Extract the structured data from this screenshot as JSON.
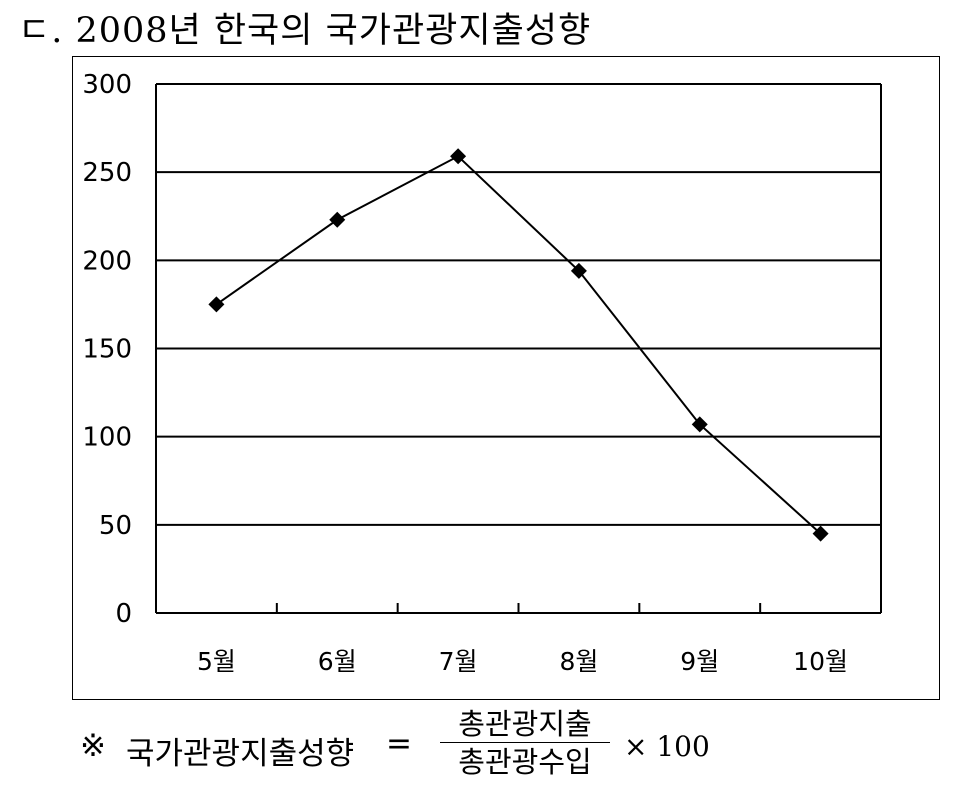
{
  "title": "ㄷ. 2008년 한국의 국가관광지출성향",
  "chart_data": {
    "type": "line",
    "title": "",
    "xlabel": "",
    "ylabel": "",
    "categories": [
      "5월",
      "6월",
      "7월",
      "8월",
      "9월",
      "10월"
    ],
    "series": [
      {
        "values": [
          175,
          223,
          259,
          194,
          107,
          45
        ]
      }
    ],
    "ylim": [
      0,
      300
    ],
    "yticks": [
      0,
      50,
      100,
      150,
      200,
      250,
      300
    ],
    "grid": true,
    "marker": "diamond",
    "line_color": "#000000",
    "legend": "none"
  },
  "footnote": {
    "mark": "※",
    "lhs": "국가관광지출성향",
    "eq": "=",
    "numerator": "총관광지출",
    "denominator": "총관광수입",
    "multiplier": "× 100"
  }
}
